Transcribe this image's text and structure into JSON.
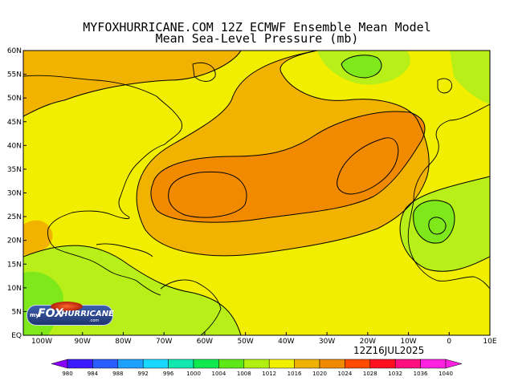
{
  "title_line1": "MYFOXHURRICANE.COM 12Z ECMWF Ensemble Mean Model",
  "title_line2": "Mean Sea-Level Pressure (mb)",
  "date_stamp": "12Z16JUL2025",
  "logo": {
    "my": "my",
    "fox": "FOX",
    "hurricane": "HURRICANE",
    "com": ".com"
  },
  "lat_labels": [
    "60N",
    "55N",
    "50N",
    "45N",
    "40N",
    "35N",
    "30N",
    "25N",
    "20N",
    "15N",
    "10N",
    "5N",
    "EQ"
  ],
  "lon_labels": [
    "100W",
    "90W",
    "80W",
    "70W",
    "60W",
    "50W",
    "40W",
    "30W",
    "20W",
    "10W",
    "0",
    "10E"
  ],
  "colorbar": {
    "values": [
      "980",
      "984",
      "988",
      "992",
      "996",
      "1000",
      "1004",
      "1008",
      "1012",
      "1016",
      "1020",
      "1024",
      "1028",
      "1032",
      "1036",
      "1040"
    ],
    "colors": [
      "#8a00ff",
      "#3b1aff",
      "#2a5dff",
      "#1ea0ff",
      "#18d8ff",
      "#10e8b0",
      "#10e850",
      "#5fe818",
      "#b0f010",
      "#f0f000",
      "#f0b000",
      "#f08a00",
      "#ff4a00",
      "#ff1020",
      "#ff1080",
      "#ff20e0"
    ]
  },
  "map": {
    "colors": {
      "c1008": "#7ee81a",
      "c1012": "#b8ef18",
      "c1016": "#f2ee00",
      "c1020": "#f2b200",
      "c1024": "#f28a00",
      "land_line": "#000000"
    }
  }
}
